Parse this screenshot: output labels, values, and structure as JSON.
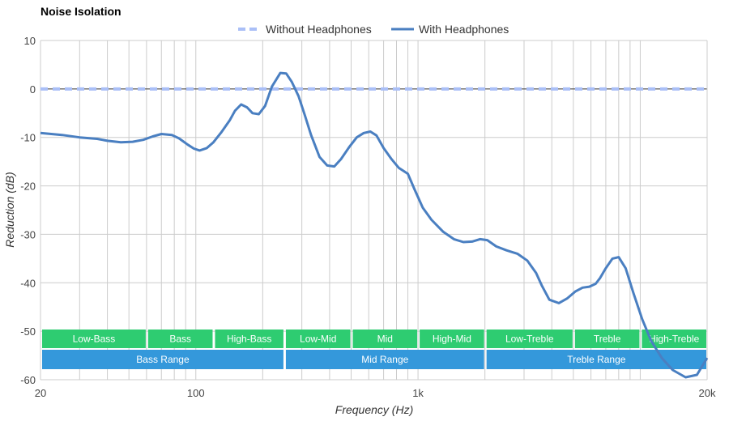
{
  "chart_data": {
    "type": "line",
    "title": "Noise Isolation",
    "xlabel": "Frequency (Hz)",
    "ylabel": "Reduction (dB)",
    "x_scale": "log",
    "xlim": [
      20,
      20000
    ],
    "ylim": [
      -60,
      10
    ],
    "x_ticks": [
      {
        "value": 20,
        "label": "20"
      },
      {
        "value": 100,
        "label": "100"
      },
      {
        "value": 1000,
        "label": "1k"
      },
      {
        "value": 20000,
        "label": "20k"
      }
    ],
    "y_ticks": [
      10,
      0,
      -10,
      -20,
      -30,
      -40,
      -50,
      -60
    ],
    "grid": true,
    "legend_position": "top-center",
    "series": [
      {
        "name": "Without Headphones",
        "color": "#aabff7",
        "style": "dashed",
        "x": [
          20,
          20000
        ],
        "y": [
          0,
          0
        ]
      },
      {
        "name": "With Headphones",
        "color": "#4a7fc1",
        "style": "solid",
        "x": [
          20,
          25,
          30,
          36,
          40,
          46,
          52,
          58,
          64,
          70,
          78,
          84,
          92,
          98,
          104,
          112,
          120,
          130,
          142,
          150,
          160,
          170,
          180,
          192,
          205,
          220,
          240,
          255,
          270,
          290,
          310,
          330,
          360,
          390,
          420,
          450,
          490,
          530,
          570,
          610,
          650,
          700,
          760,
          820,
          900,
          960,
          1050,
          1150,
          1300,
          1450,
          1600,
          1750,
          1900,
          2050,
          2250,
          2500,
          2800,
          3100,
          3400,
          3600,
          3900,
          4300,
          4700,
          5100,
          5500,
          5900,
          6300,
          6600,
          7000,
          7500,
          8000,
          8600,
          9300,
          10200,
          11200,
          12500,
          14000,
          16000,
          18000,
          20000
        ],
        "y": [
          -9.1,
          -9.5,
          -10,
          -10.3,
          -10.7,
          -11.0,
          -10.9,
          -10.5,
          -9.8,
          -9.3,
          -9.5,
          -10.2,
          -11.5,
          -12.3,
          -12.7,
          -12.2,
          -11.0,
          -9.0,
          -6.5,
          -4.5,
          -3.2,
          -3.8,
          -5.0,
          -5.2,
          -3.5,
          0.5,
          3.3,
          3.2,
          1.5,
          -1.5,
          -5.5,
          -9.5,
          -14.0,
          -15.8,
          -16.0,
          -14.5,
          -12.0,
          -10.0,
          -9.1,
          -8.8,
          -9.6,
          -12.2,
          -14.5,
          -16.3,
          -17.5,
          -20.5,
          -24.5,
          -27.0,
          -29.5,
          -31.0,
          -31.6,
          -31.5,
          -31.0,
          -31.2,
          -32.5,
          -33.3,
          -34.0,
          -35.4,
          -38.0,
          -40.5,
          -43.5,
          -44.2,
          -43.2,
          -41.8,
          -41.0,
          -40.8,
          -40.2,
          -39.0,
          -37.0,
          -35.0,
          -34.7,
          -37.0,
          -42.0,
          -47.5,
          -52.0,
          -55.5,
          -58.0,
          -59.5,
          -59.0,
          -55.5
        ]
      }
    ],
    "bands": {
      "row1": [
        {
          "label": "Low-Bass",
          "from": 20,
          "to": 60
        },
        {
          "label": "Bass",
          "from": 60,
          "to": 120
        },
        {
          "label": "High-Bass",
          "from": 120,
          "to": 250
        },
        {
          "label": "Low-Mid",
          "from": 250,
          "to": 500
        },
        {
          "label": "Mid",
          "from": 500,
          "to": 1000
        },
        {
          "label": "High-Mid",
          "from": 1000,
          "to": 2000
        },
        {
          "label": "Low-Treble",
          "from": 2000,
          "to": 5000
        },
        {
          "label": "Treble",
          "from": 5000,
          "to": 10000
        },
        {
          "label": "High-Treble",
          "from": 10000,
          "to": 20000
        }
      ],
      "row2": [
        {
          "label": "Bass Range",
          "from": 20,
          "to": 250
        },
        {
          "label": "Mid Range",
          "from": 250,
          "to": 2000
        },
        {
          "label": "Treble Range",
          "from": 2000,
          "to": 20000
        }
      ],
      "row1_color": "#2ecc71",
      "row2_color": "#3498db"
    }
  }
}
